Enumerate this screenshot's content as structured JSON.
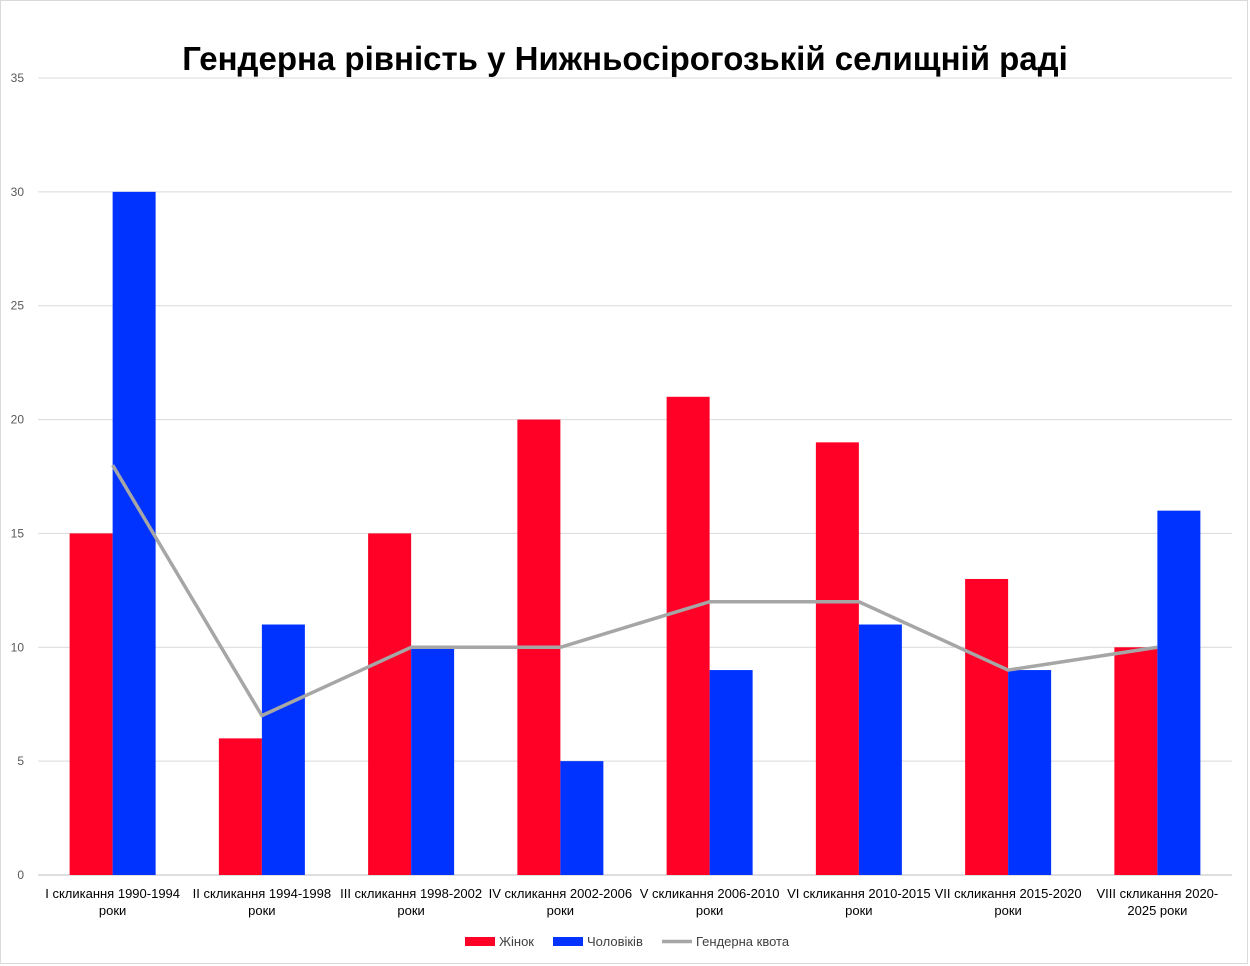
{
  "chart_data": {
    "type": "bar",
    "title": "Гендерна рівність у Нижньосірогозькій селищній раді",
    "categories": [
      [
        "I скликання 1990-1994",
        "роки"
      ],
      [
        "II скликання 1994-1998",
        "роки"
      ],
      [
        "III скликання 1998-2002",
        "роки"
      ],
      [
        "IV скликання 2002-2006",
        "роки"
      ],
      [
        "V скликання 2006-2010",
        "роки"
      ],
      [
        "VI скликання 2010-2015",
        "роки"
      ],
      [
        "VII скликання 2015-2020",
        "роки"
      ],
      [
        "VIII скликання 2020-",
        "2025 роки"
      ]
    ],
    "series": [
      {
        "name": "Жінок",
        "type": "bar",
        "color": "#ff0026",
        "values": [
          15,
          6,
          15,
          20,
          21,
          19,
          13,
          10
        ]
      },
      {
        "name": "Чоловіків",
        "type": "bar",
        "color": "#0033ff",
        "values": [
          30,
          11,
          10,
          5,
          9,
          11,
          9,
          16
        ]
      },
      {
        "name": "Гендерна квота",
        "type": "line",
        "color": "#a6a6a6",
        "values": [
          18,
          7,
          10,
          10,
          12,
          12,
          9,
          10
        ]
      }
    ],
    "ylim": [
      0,
      35
    ],
    "yticks": [
      0,
      5,
      10,
      15,
      20,
      25,
      30,
      35
    ],
    "grid": true,
    "legend_position": "bottom"
  }
}
